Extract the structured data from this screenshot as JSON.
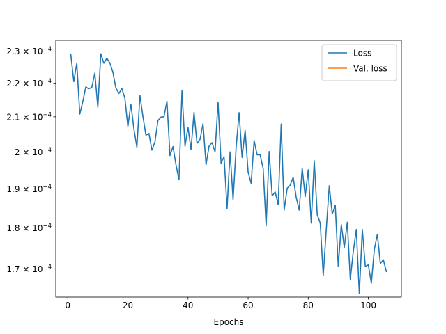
{
  "chart_data": {
    "type": "line",
    "xlabel": "Epochs",
    "ylabel": "",
    "yscale": "log",
    "xlim": [
      -4,
      111
    ],
    "ylim": [
      0.0001635,
      0.0002335
    ],
    "xticks": [
      0,
      20,
      40,
      60,
      80,
      100
    ],
    "xtick_labels": [
      "0",
      "20",
      "40",
      "60",
      "80",
      "100"
    ],
    "yticks": [
      0.00017,
      0.00018,
      0.00019,
      0.0002,
      0.00021,
      0.00022,
      0.00023
    ],
    "ytick_labels": [
      {
        "mant": "1.7",
        "exp": "−4"
      },
      {
        "mant": "1.8",
        "exp": "−4"
      },
      {
        "mant": "1.9",
        "exp": "−4"
      },
      {
        "mant": "",
        "exp": "−4",
        "base": "2"
      },
      {
        "mant": "2.1",
        "exp": "−4"
      },
      {
        "mant": "2.2",
        "exp": "−4"
      },
      {
        "mant": "2.3",
        "exp": "−4"
      }
    ],
    "legend": {
      "position": "top-right"
    },
    "grid": false,
    "series": [
      {
        "name": "Loss",
        "color": "#1f77b4",
        "x": [
          1,
          2,
          3,
          4,
          5,
          6,
          7,
          8,
          9,
          10,
          11,
          12,
          13,
          14,
          15,
          16,
          17,
          18,
          19,
          20,
          21,
          22,
          23,
          24,
          25,
          26,
          27,
          28,
          29,
          30,
          31,
          32,
          33,
          34,
          35,
          36,
          37,
          38,
          39,
          40,
          41,
          42,
          43,
          44,
          45,
          46,
          47,
          48,
          49,
          50,
          51,
          52,
          53,
          54,
          55,
          56,
          57,
          58,
          59,
          60,
          61,
          62,
          63,
          64,
          65,
          66,
          67,
          68,
          69,
          70,
          71,
          72,
          73,
          74,
          75,
          76,
          77,
          78,
          79,
          80,
          81,
          82,
          83,
          84,
          85,
          86,
          87,
          88,
          89,
          90,
          91,
          92,
          93,
          94,
          95,
          96,
          97,
          98,
          99,
          100,
          101,
          102,
          103,
          104,
          105,
          106
        ],
        "y": [
          0.000229,
          0.0002205,
          0.0002262,
          0.0002108,
          0.0002145,
          0.0002189,
          0.0002183,
          0.0002188,
          0.0002231,
          0.0002128,
          0.0002292,
          0.0002262,
          0.0002278,
          0.0002263,
          0.0002235,
          0.0002186,
          0.0002169,
          0.0002184,
          0.0002155,
          0.0002072,
          0.0002137,
          0.0002065,
          0.0002013,
          0.0002163,
          0.0002101,
          0.0002047,
          0.0002052,
          0.0002005,
          0.0002028,
          0.0002089,
          0.0002099,
          0.00021,
          0.0002146,
          0.000199,
          0.0002015,
          0.0001965,
          0.0001924,
          0.0002177,
          0.0002016,
          0.000207,
          0.0002007,
          0.0002113,
          0.0002024,
          0.0002035,
          0.000208,
          0.0001965,
          0.0002016,
          0.0002026,
          0.0002,
          0.0002143,
          0.0001969,
          0.0001987,
          0.0001849,
          0.0002,
          0.0001872,
          0.0002011,
          0.0002112,
          0.0001985,
          0.0002061,
          0.0001945,
          0.0001915,
          0.0002032,
          0.0001992,
          0.0001992,
          0.0001955,
          0.0001805,
          0.0002001,
          0.0001882,
          0.0001892,
          0.0001859,
          0.0002079,
          0.0001845,
          0.0001902,
          0.000191,
          0.0001931,
          0.0001878,
          0.0001845,
          0.0001955,
          0.000188,
          0.0001951,
          0.0001812,
          0.0001976,
          0.0001833,
          0.0001812,
          0.0001685,
          0.0001795,
          0.0001908,
          0.0001835,
          0.0001857,
          0.0001706,
          0.0001808,
          0.0001752,
          0.0001814,
          0.0001676,
          0.0001742,
          0.0001796,
          0.0001643,
          0.0001796,
          0.0001706,
          0.000171,
          0.0001667,
          0.0001747,
          0.0001784,
          0.0001713,
          0.0001722,
          0.0001694
        ]
      },
      {
        "name": "Val. loss",
        "color": "#ff7f0e",
        "x": [],
        "y": []
      }
    ]
  }
}
